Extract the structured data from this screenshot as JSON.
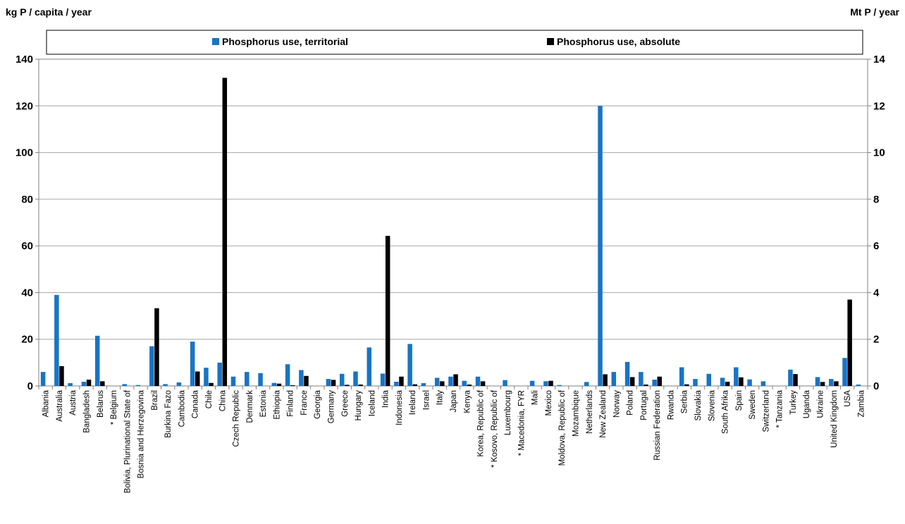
{
  "chart_data": {
    "type": "bar",
    "ylabel_left": "kg P / capita / year",
    "ylabel_right": "Mt P / year",
    "ylim_left": [
      0,
      140
    ],
    "ylim_right": [
      0,
      14
    ],
    "yticks_left": [
      "0",
      "20",
      "40",
      "60",
      "80",
      "100",
      "120",
      "140"
    ],
    "yticks_right": [
      "0",
      "2",
      "4",
      "6",
      "8",
      "10",
      "12",
      "14"
    ],
    "grid": true,
    "legend_position": "top",
    "categories": [
      "Albania",
      "Australia",
      "Austria",
      "Bangladesh",
      "Belarus",
      "* Belgium",
      "Bolivia, Plurinational State of",
      "Bosnia and Herzegovina",
      "Brazil",
      "Burkina Fazo",
      "Cambodia",
      "Canada",
      "Chile",
      "China",
      "Czech Republic",
      "Denmark",
      "Estonia",
      "Ethiopia",
      "Finland",
      "France",
      "Georgia",
      "Germany",
      "Greece",
      "Hungary",
      "Iceland",
      "India",
      "Indonesia",
      "Ireland",
      "Israel",
      "Italy",
      "Japan",
      "Kenya",
      "Korea, Republic of",
      "* Kosovo, Republic of",
      "Luxembourg",
      "* Macedonia, FYR",
      "Mali",
      "Mexico",
      "Moldova, Republic of",
      "Mozambique",
      "Netherlands",
      "New Zealand",
      "Norway",
      "Poland",
      "Portugal",
      "Russian Federation",
      "Rwanda",
      "Serbia",
      "Slovakia",
      "Slovenia",
      "South Afrika",
      "Spain",
      "Sweden",
      "Switzerland",
      "* Tanzania",
      "Turkey",
      "Uganda",
      "Ukraine",
      "United Kingdom",
      "USA",
      "Zambia"
    ],
    "series": [
      {
        "name": "Phosphorus use, territorial",
        "axis": "left",
        "color": "#1874c4",
        "values": [
          6,
          39,
          1.2,
          1.8,
          21.5,
          0,
          0.8,
          0.4,
          17,
          0.8,
          1.5,
          19,
          7.8,
          10,
          4,
          6,
          5.5,
          1.3,
          9.3,
          6.8,
          0,
          3,
          5.2,
          6.2,
          16.5,
          5.3,
          1.8,
          18,
          1.2,
          3.5,
          4,
          2.2,
          4,
          0,
          2.5,
          0,
          2.2,
          2,
          0.4,
          0,
          1.7,
          120,
          6,
          10.3,
          6,
          2.7,
          0,
          8,
          3,
          5.2,
          3.5,
          8,
          2.8,
          2,
          0,
          7,
          0,
          3.8,
          3,
          12,
          0.6
        ]
      },
      {
        "name": "Phosphorus use, absolute",
        "axis": "right",
        "color": "#000000",
        "values": [
          0,
          0.85,
          0,
          0.27,
          0.2,
          0,
          0,
          0,
          3.33,
          0,
          0,
          0.62,
          0.13,
          13.2,
          0,
          0,
          0,
          0.1,
          0.03,
          0.43,
          0,
          0.26,
          0.05,
          0.06,
          0,
          6.43,
          0.4,
          0.07,
          0,
          0.2,
          0.5,
          0.06,
          0.2,
          0,
          0,
          0,
          0,
          0.22,
          0,
          0,
          0,
          0.5,
          0,
          0.38,
          0.06,
          0.4,
          0,
          0.07,
          0,
          0,
          0.18,
          0.37,
          0,
          0,
          0,
          0.51,
          0,
          0.17,
          0.2,
          3.7,
          0
        ]
      }
    ]
  }
}
